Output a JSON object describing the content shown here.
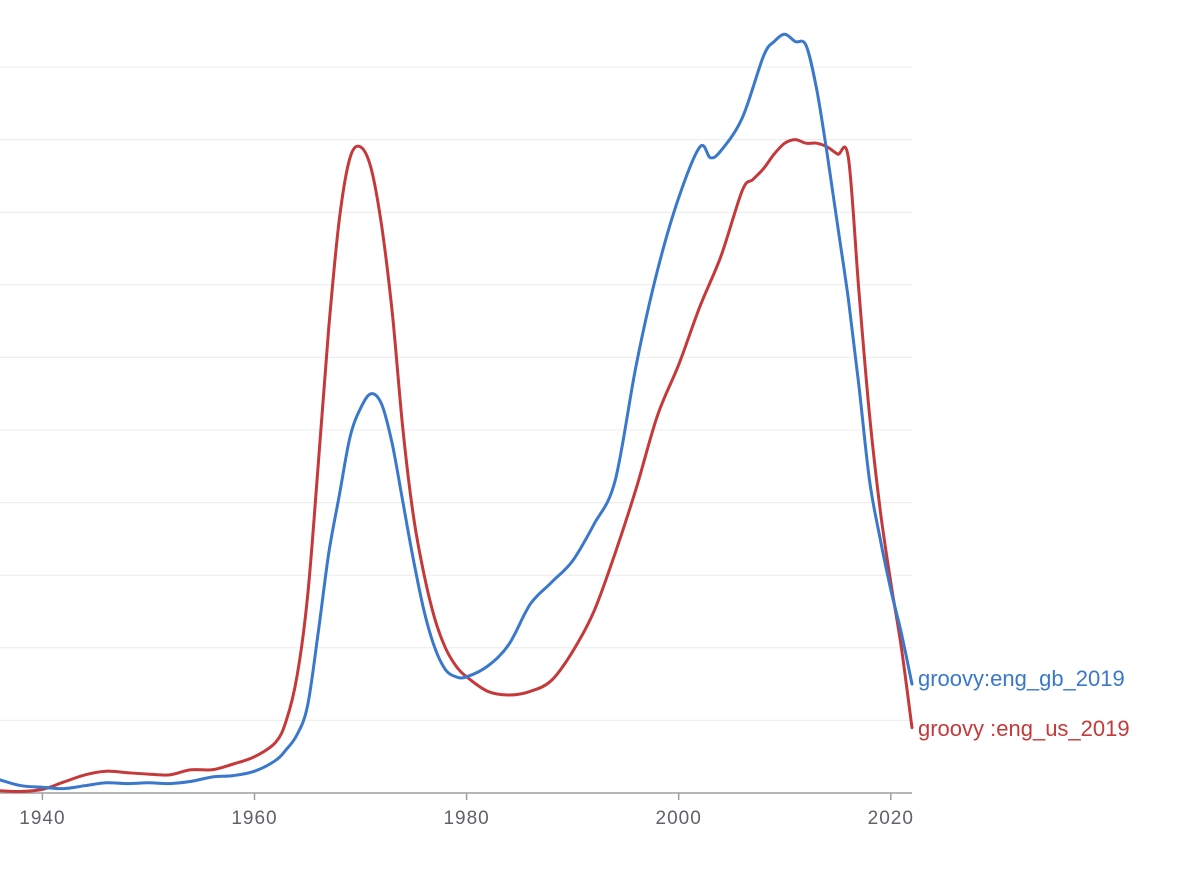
{
  "chart_data": {
    "type": "line",
    "title": "",
    "xlabel": "",
    "ylabel": "",
    "xlim": [
      1936,
      2022
    ],
    "ylim": [
      0,
      10.5
    ],
    "grid": true,
    "legend": "inline-right",
    "x_ticks": [
      {
        "value": 1940,
        "label": "1940"
      },
      {
        "value": 1960,
        "label": "1960"
      },
      {
        "value": 1980,
        "label": "1980"
      },
      {
        "value": 2000,
        "label": "2000"
      },
      {
        "value": 2020,
        "label": "2020"
      }
    ],
    "y_gridlines": [
      1,
      2,
      3,
      4,
      5,
      6,
      7,
      8,
      9,
      10
    ],
    "series": [
      {
        "name": "groovy :eng_us_2019",
        "color": "#c5393a",
        "x": [
          1936,
          1938,
          1940,
          1942,
          1944,
          1946,
          1948,
          1950,
          1952,
          1954,
          1956,
          1958,
          1960,
          1962,
          1963,
          1964,
          1965,
          1966,
          1967,
          1968,
          1969,
          1970,
          1971,
          1972,
          1973,
          1974,
          1975,
          1976,
          1977,
          1978,
          1979,
          1980,
          1982,
          1984,
          1986,
          1988,
          1990,
          1992,
          1994,
          1996,
          1998,
          2000,
          2002,
          2004,
          2006,
          2007,
          2008,
          2009,
          2010,
          2011,
          2012,
          2013,
          2014,
          2015,
          2016,
          2017,
          2018,
          2019,
          2020,
          2021,
          2022
        ],
        "values": [
          0.03,
          0.02,
          0.05,
          0.15,
          0.25,
          0.3,
          0.28,
          0.26,
          0.25,
          0.32,
          0.32,
          0.4,
          0.5,
          0.7,
          1.0,
          1.6,
          2.7,
          4.5,
          6.4,
          7.9,
          8.75,
          8.9,
          8.6,
          7.8,
          6.6,
          5.0,
          3.8,
          3.0,
          2.4,
          2.0,
          1.75,
          1.6,
          1.4,
          1.35,
          1.4,
          1.55,
          1.95,
          2.5,
          3.3,
          4.2,
          5.2,
          5.9,
          6.7,
          7.4,
          8.3,
          8.45,
          8.6,
          8.8,
          8.95,
          9.0,
          8.95,
          8.95,
          8.9,
          8.8,
          8.75,
          6.9,
          5.2,
          3.9,
          2.9,
          2.0,
          0.9
        ]
      },
      {
        "name": "groovy:eng_gb_2019",
        "color": "#3a78cc",
        "x": [
          1936,
          1938,
          1940,
          1942,
          1944,
          1946,
          1948,
          1950,
          1952,
          1954,
          1956,
          1958,
          1960,
          1962,
          1963,
          1964,
          1965,
          1966,
          1967,
          1968,
          1969,
          1970,
          1971,
          1972,
          1973,
          1974,
          1975,
          1976,
          1977,
          1978,
          1979,
          1980,
          1982,
          1984,
          1986,
          1988,
          1990,
          1992,
          1994,
          1996,
          1998,
          2000,
          2002,
          2003,
          2004,
          2006,
          2008,
          2009,
          2010,
          2011,
          2012,
          2013,
          2014,
          2015,
          2016,
          2017,
          2018,
          2019,
          2020,
          2021,
          2022
        ],
        "values": [
          0.18,
          0.1,
          0.08,
          0.06,
          0.1,
          0.14,
          0.13,
          0.14,
          0.13,
          0.16,
          0.22,
          0.24,
          0.3,
          0.45,
          0.6,
          0.8,
          1.2,
          2.2,
          3.3,
          4.1,
          4.9,
          5.3,
          5.5,
          5.35,
          4.8,
          4.0,
          3.2,
          2.5,
          2.0,
          1.7,
          1.6,
          1.6,
          1.75,
          2.05,
          2.6,
          2.9,
          3.2,
          3.7,
          4.3,
          5.9,
          7.2,
          8.2,
          8.9,
          8.75,
          8.85,
          9.3,
          10.15,
          10.35,
          10.45,
          10.35,
          10.3,
          9.7,
          8.8,
          7.8,
          6.8,
          5.6,
          4.3,
          3.5,
          2.8,
          2.2,
          1.5
        ]
      }
    ]
  }
}
